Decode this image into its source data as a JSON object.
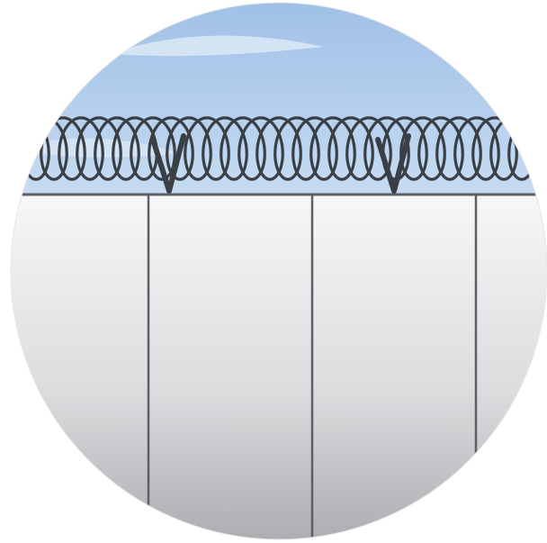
{
  "illustration": {
    "subject": "security-fence-with-razor-wire-icon",
    "colors": {
      "sky_top": "#9fc0e6",
      "sky_bottom": "#c7dcf2",
      "cloud": "#dce9f7",
      "wall_top": "#f7f7f8",
      "wall_bottom": "#a9a9ad",
      "wire": "#3a3f45",
      "seam": "#5c5f63",
      "background": "#ffffff"
    }
  }
}
